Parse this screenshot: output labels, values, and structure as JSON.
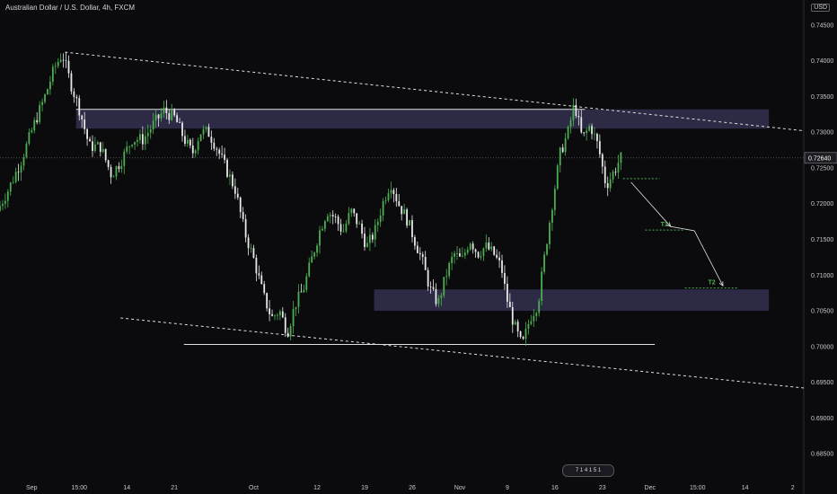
{
  "header": {
    "title": "Australian Dollar / U.S. Dollar, 4h, FXCM",
    "currency_button": "USD"
  },
  "watermark": "7 1 4 1 5 1",
  "colors": {
    "background": "#0b0b0e",
    "up": "#4caf50",
    "down": "#e8e8e8",
    "zone": "#3a3658",
    "target": "#4caf50",
    "trendline": "#e0e0e0"
  },
  "chart_data": {
    "type": "candlestick",
    "symbol": "AUDUSD",
    "timeframe": "4h",
    "y_range": [
      0.6815,
      0.7485
    ],
    "y_ticks": [
      "0.74500",
      "0.74000",
      "0.73500",
      "0.73000",
      "0.72500",
      "0.72000",
      "0.71500",
      "0.71000",
      "0.70500",
      "0.70000",
      "0.69500",
      "0.69000",
      "0.68500"
    ],
    "x_ticks": [
      {
        "label": "Sep",
        "day": 0
      },
      {
        "label": "15:00",
        "day": 3
      },
      {
        "label": "14",
        "day": 6
      },
      {
        "label": "21",
        "day": 9
      },
      {
        "label": "Oct",
        "day": 14
      },
      {
        "label": "12",
        "day": 18
      },
      {
        "label": "19",
        "day": 21
      },
      {
        "label": "26",
        "day": 24
      },
      {
        "label": "Nov",
        "day": 27
      },
      {
        "label": "9",
        "day": 30
      },
      {
        "label": "16",
        "day": 33
      },
      {
        "label": "23",
        "day": 36
      },
      {
        "label": "Dec",
        "day": 39
      },
      {
        "label": "15:00",
        "day": 42
      },
      {
        "label": "14",
        "day": 45
      },
      {
        "label": "2",
        "day": 48
      }
    ],
    "x_day_range": [
      -2,
      48.7
    ],
    "last_price": "0.72640",
    "price_path": [
      [
        -2,
        0.719
      ],
      [
        -1.3,
        0.722
      ],
      [
        -0.5,
        0.726
      ],
      [
        0.3,
        0.731
      ],
      [
        1,
        0.735
      ],
      [
        1.6,
        0.739
      ],
      [
        2.1,
        0.741
      ],
      [
        2.6,
        0.737
      ],
      [
        3.2,
        0.733
      ],
      [
        3.8,
        0.728
      ],
      [
        4.5,
        0.728
      ],
      [
        5.2,
        0.724
      ],
      [
        5.8,
        0.726
      ],
      [
        6.5,
        0.729
      ],
      [
        7.2,
        0.729
      ],
      [
        7.8,
        0.731
      ],
      [
        8.5,
        0.733
      ],
      [
        9.2,
        0.732
      ],
      [
        9.8,
        0.729
      ],
      [
        10.3,
        0.727
      ],
      [
        10.8,
        0.73
      ],
      [
        11.3,
        0.73
      ],
      [
        11.8,
        0.728
      ],
      [
        12.4,
        0.725
      ],
      [
        13,
        0.722
      ],
      [
        13.6,
        0.716
      ],
      [
        14.2,
        0.712
      ],
      [
        14.8,
        0.707
      ],
      [
        15.3,
        0.704
      ],
      [
        15.8,
        0.705
      ],
      [
        16.3,
        0.702
      ],
      [
        16.8,
        0.706
      ],
      [
        17.3,
        0.708
      ],
      [
        17.8,
        0.712
      ],
      [
        18.3,
        0.716
      ],
      [
        18.8,
        0.719
      ],
      [
        19.3,
        0.718
      ],
      [
        19.8,
        0.716
      ],
      [
        20.3,
        0.719
      ],
      [
        20.8,
        0.717
      ],
      [
        21.3,
        0.714
      ],
      [
        21.8,
        0.716
      ],
      [
        22.3,
        0.72
      ],
      [
        22.8,
        0.723
      ],
      [
        23.3,
        0.72
      ],
      [
        23.8,
        0.718
      ],
      [
        24.3,
        0.715
      ],
      [
        24.8,
        0.712
      ],
      [
        25.3,
        0.708
      ],
      [
        25.8,
        0.706
      ],
      [
        26.3,
        0.71
      ],
      [
        26.8,
        0.713
      ],
      [
        27.3,
        0.712
      ],
      [
        27.8,
        0.715
      ],
      [
        28.3,
        0.713
      ],
      [
        28.8,
        0.714
      ],
      [
        29.3,
        0.713
      ],
      [
        29.8,
        0.711
      ],
      [
        30.1,
        0.707
      ],
      [
        30.6,
        0.703
      ],
      [
        31.1,
        0.7
      ],
      [
        31.6,
        0.704
      ],
      [
        32.1,
        0.706
      ],
      [
        32.6,
        0.714
      ],
      [
        33,
        0.72
      ],
      [
        33.5,
        0.727
      ],
      [
        34,
        0.73
      ],
      [
        34.4,
        0.734
      ],
      [
        34.9,
        0.729
      ],
      [
        35.4,
        0.731
      ],
      [
        35.9,
        0.728
      ],
      [
        36.4,
        0.7225
      ],
      [
        36.9,
        0.7245
      ],
      [
        37.3,
        0.7264
      ]
    ],
    "trendline_upper": {
      "points": [
        [
          2.1,
          0.7412
        ],
        [
          48.7,
          0.7302
        ]
      ],
      "style": "dashed"
    },
    "trendline_lower": {
      "points": [
        [
          5.6,
          0.704
        ],
        [
          48.7,
          0.6942
        ]
      ],
      "style": "dashed"
    },
    "resistance_zone": {
      "from": [
        2.8,
        0.7332
      ],
      "to": [
        46.5,
        0.7305
      ]
    },
    "support_zone": {
      "from": [
        21.6,
        0.708
      ],
      "to": [
        46.5,
        0.705
      ]
    },
    "resistance_line": {
      "day_from": 2.8,
      "day_to": 34.9,
      "value": 0.7332
    },
    "support_line": {
      "day_from": 9.6,
      "day_to": 39.3,
      "value": 0.7003
    },
    "targets": [
      {
        "label": "T1",
        "value": 0.7163,
        "day_from": 38.7,
        "day_to": 41.1
      },
      {
        "label": "T2",
        "value": 0.7082,
        "day_from": 41.2,
        "day_to": 44.6
      }
    ],
    "entry_level": {
      "value": 0.7235,
      "day_from": 37.3,
      "day_to": 39.6
    },
    "projection_path": [
      [
        37.8,
        0.723
      ],
      [
        40.3,
        0.7168
      ],
      [
        41.8,
        0.7162
      ],
      [
        43.6,
        0.7085
      ]
    ]
  }
}
